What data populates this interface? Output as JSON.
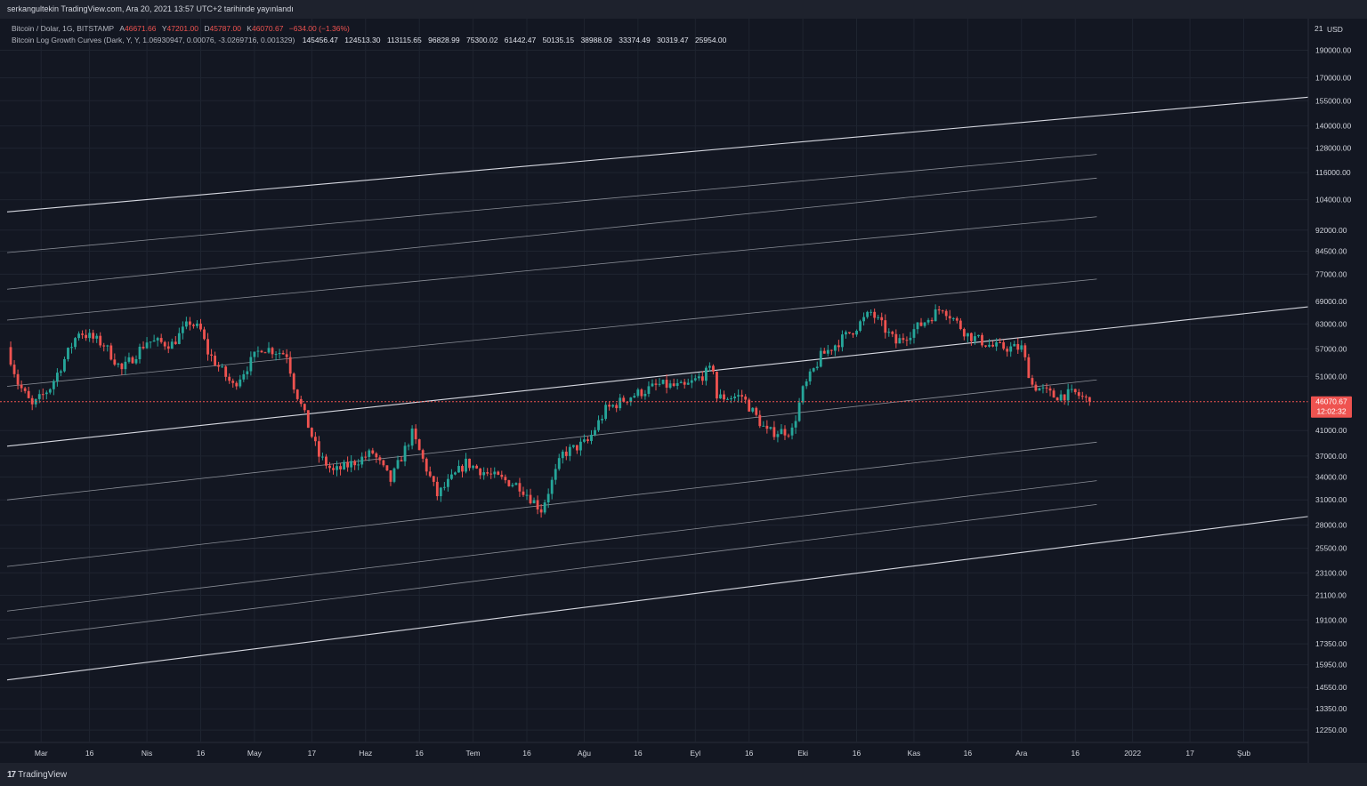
{
  "header": {
    "published_text": "serkangultekin TradingView.com, Ara 20, 2021 13:57 UTC+2 tarihinde yayınlandı"
  },
  "legend": {
    "symbol_line": "Bitcoin / Dolar, 1G, BITSTAMP",
    "ohlc": {
      "open_label": "A",
      "open": "46671.66",
      "high_label": "Y",
      "high": "47201.00",
      "low_label": "D",
      "low": "45787.00",
      "close_label": "K",
      "close": "46070.67",
      "change": "−634.00 (−1.36%)"
    },
    "indicator_name": "Bitcoin Log Growth Curves (Dark, Y, Y, 1.06930947, 0.00076, -3.0269716, 0.001329)",
    "indicator_values": [
      "145456.47",
      "124513.30",
      "113115.65",
      "96828.99",
      "75300.02",
      "61442.47",
      "50135.15",
      "38988.09",
      "33374.49",
      "30319.47",
      "25954.00"
    ]
  },
  "price_axis": {
    "currency": "USD",
    "top_partial": "21",
    "labels": [
      "190000.00",
      "170000.00",
      "155000.00",
      "140000.00",
      "128000.00",
      "116000.00",
      "104000.00",
      "92000.00",
      "84500.00",
      "77000.00",
      "69000.00",
      "63000.00",
      "57000.00",
      "51000.00",
      "41000.00",
      "37000.00",
      "34000.00",
      "31000.00",
      "28000.00",
      "25500.00",
      "23100.00",
      "21100.00",
      "19100.00",
      "17350.00",
      "15950.00",
      "14550.00",
      "13350.00",
      "12250.00"
    ],
    "current_price": "46070.67",
    "countdown": "12:02:32"
  },
  "time_axis": {
    "labels": [
      "Mar",
      "16",
      "Nis",
      "16",
      "May",
      "17",
      "Haz",
      "16",
      "Tem",
      "16",
      "Ağu",
      "16",
      "Eyl",
      "16",
      "Eki",
      "16",
      "Kas",
      "16",
      "Ara",
      "16",
      "2022",
      "17",
      "Şub"
    ]
  },
  "footer": {
    "brand": "TradingView",
    "logo": "17"
  },
  "colors": {
    "background": "#131722",
    "up": "#26a69a",
    "down": "#ef5350",
    "bands": "#b2b5be",
    "grid": "#1f2430"
  },
  "chart_data": {
    "type": "candlestick",
    "title": "Bitcoin / Dolar, 1G, BITSTAMP",
    "y_scale": "log",
    "ylim": [
      11700,
      215000
    ],
    "x_range": [
      "2021-02-21",
      "2022-02-19"
    ],
    "bands_end_2021_12_20": [
      145456.47,
      124513.3,
      113115.65,
      96828.99,
      75300.02,
      61442.47,
      50135.15,
      38988.09,
      33374.49,
      30319.47,
      25954.0
    ],
    "bands_left_2021_02_21": [
      99000,
      84000,
      72500,
      64000,
      49000,
      38500,
      31000,
      23700,
      19800,
      17700,
      15000
    ],
    "close_series": [
      {
        "date": "2021-02-21",
        "close": 57400
      },
      {
        "date": "2021-02-24",
        "close": 49700
      },
      {
        "date": "2021-02-28",
        "close": 45200
      },
      {
        "date": "2021-03-05",
        "close": 48800
      },
      {
        "date": "2021-03-13",
        "close": 61200
      },
      {
        "date": "2021-03-20",
        "close": 58000
      },
      {
        "date": "2021-03-25",
        "close": 52300
      },
      {
        "date": "2021-04-01",
        "close": 58800
      },
      {
        "date": "2021-04-08",
        "close": 58100
      },
      {
        "date": "2021-04-13",
        "close": 63500
      },
      {
        "date": "2021-04-16",
        "close": 61300
      },
      {
        "date": "2021-04-18",
        "close": 56200
      },
      {
        "date": "2021-04-25",
        "close": 49100
      },
      {
        "date": "2021-05-03",
        "close": 57400
      },
      {
        "date": "2021-05-10",
        "close": 55800
      },
      {
        "date": "2021-05-12",
        "close": 49200
      },
      {
        "date": "2021-05-19",
        "close": 37000
      },
      {
        "date": "2021-05-23",
        "close": 34700
      },
      {
        "date": "2021-05-27",
        "close": 35600
      },
      {
        "date": "2021-06-03",
        "close": 37500
      },
      {
        "date": "2021-06-08",
        "close": 33500
      },
      {
        "date": "2021-06-14",
        "close": 40500
      },
      {
        "date": "2021-06-21",
        "close": 31600
      },
      {
        "date": "2021-06-29",
        "close": 36000
      },
      {
        "date": "2021-07-06",
        "close": 34200
      },
      {
        "date": "2021-07-14",
        "close": 32800
      },
      {
        "date": "2021-07-20",
        "close": 29800
      },
      {
        "date": "2021-07-26",
        "close": 37300
      },
      {
        "date": "2021-08-02",
        "close": 39200
      },
      {
        "date": "2021-08-07",
        "close": 44600
      },
      {
        "date": "2021-08-14",
        "close": 47100
      },
      {
        "date": "2021-08-22",
        "close": 49300
      },
      {
        "date": "2021-08-29",
        "close": 48800
      },
      {
        "date": "2021-09-06",
        "close": 52700
      },
      {
        "date": "2021-09-07",
        "close": 46800
      },
      {
        "date": "2021-09-14",
        "close": 47100
      },
      {
        "date": "2021-09-21",
        "close": 40700
      },
      {
        "date": "2021-09-28",
        "close": 41000
      },
      {
        "date": "2021-10-01",
        "close": 48200
      },
      {
        "date": "2021-10-06",
        "close": 55300
      },
      {
        "date": "2021-10-15",
        "close": 61500
      },
      {
        "date": "2021-10-20",
        "close": 66000
      },
      {
        "date": "2021-10-27",
        "close": 58400
      },
      {
        "date": "2021-11-03",
        "close": 62900
      },
      {
        "date": "2021-11-09",
        "close": 67500
      },
      {
        "date": "2021-11-16",
        "close": 60300
      },
      {
        "date": "2021-11-23",
        "close": 57500
      },
      {
        "date": "2021-11-28",
        "close": 57200
      },
      {
        "date": "2021-12-01",
        "close": 57200
      },
      {
        "date": "2021-12-04",
        "close": 49300
      },
      {
        "date": "2021-12-10",
        "close": 47100
      },
      {
        "date": "2021-12-16",
        "close": 47600
      },
      {
        "date": "2021-12-20",
        "close": 46070.67
      }
    ]
  }
}
